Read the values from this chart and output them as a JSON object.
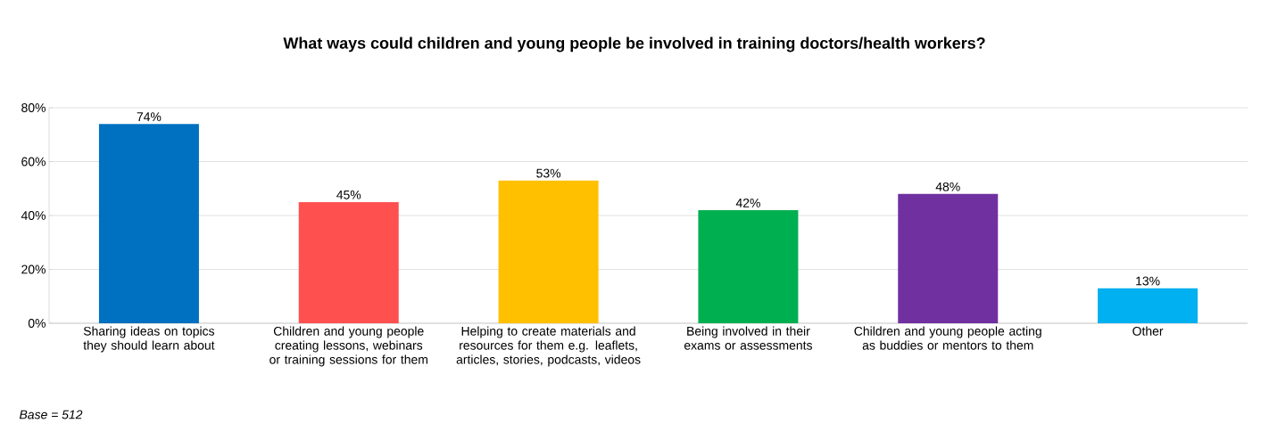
{
  "chart_data": {
    "type": "bar",
    "title": "What ways could children and young people be involved in training doctors/health workers?",
    "categories": [
      "Sharing ideas on topics they should learn about",
      "Children and young people creating lessons, webinars or training sessions for them",
      "Helping to create materials and resources for them e.g. leaflets, articles, stories, podcasts, videos",
      "Being involved in their exams or assessments",
      "Children and young people acting as buddies or mentors to them",
      "Other"
    ],
    "values": [
      74,
      45,
      53,
      42,
      48,
      13
    ],
    "value_labels": [
      "74%",
      "45%",
      "53%",
      "42%",
      "48%",
      "13%"
    ],
    "colors": [
      "#0070c0",
      "#ff5050",
      "#ffc000",
      "#00b050",
      "#7030a0",
      "#00b0f0"
    ],
    "ylim": [
      0,
      80
    ],
    "yticks": [
      {
        "value": 0,
        "label": "0%"
      },
      {
        "value": 20,
        "label": "20%"
      },
      {
        "value": 40,
        "label": "40%"
      },
      {
        "value": 60,
        "label": "60%"
      },
      {
        "value": 80,
        "label": "80%"
      }
    ],
    "grid": "y",
    "annotations": [
      "Base = 512"
    ]
  }
}
